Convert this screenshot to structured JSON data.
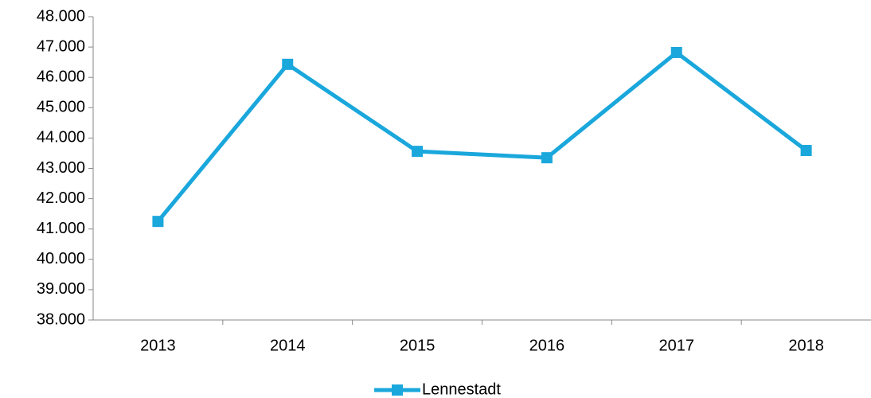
{
  "chart_data": {
    "type": "line",
    "categories": [
      "2013",
      "2014",
      "2015",
      "2016",
      "2017",
      "2018"
    ],
    "series": [
      {
        "name": "Lennestadt",
        "color": "#1aa7dc",
        "values": [
          41250,
          46430,
          43560,
          43350,
          46820,
          43590
        ]
      }
    ],
    "ylim": [
      38000,
      48000
    ],
    "yticks": [
      {
        "value": 38000,
        "label": "38.000"
      },
      {
        "value": 39000,
        "label": "39.000"
      },
      {
        "value": 40000,
        "label": "40.000"
      },
      {
        "value": 41000,
        "label": "41.000"
      },
      {
        "value": 42000,
        "label": "42.000"
      },
      {
        "value": 43000,
        "label": "43.000"
      },
      {
        "value": 44000,
        "label": "44.000"
      },
      {
        "value": 45000,
        "label": "45.000"
      },
      {
        "value": 46000,
        "label": "46.000"
      },
      {
        "value": 47000,
        "label": "47.000"
      },
      {
        "value": 48000,
        "label": "48.000"
      }
    ],
    "grid": false,
    "legend": "bottom"
  }
}
